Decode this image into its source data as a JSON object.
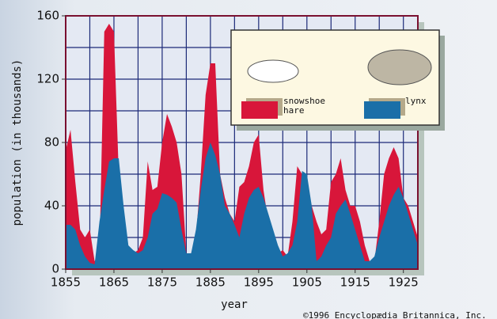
{
  "chart_data": {
    "type": "area",
    "xlabel": "year",
    "ylabel": "population (in thousands)",
    "credit": "©1996 Encyclopædia Britannica, Inc.",
    "x": [
      1855,
      1856,
      1857,
      1858,
      1859,
      1860,
      1861,
      1862,
      1863,
      1864,
      1865,
      1866,
      1867,
      1868,
      1869,
      1870,
      1871,
      1872,
      1873,
      1874,
      1875,
      1876,
      1877,
      1878,
      1879,
      1880,
      1881,
      1882,
      1883,
      1884,
      1885,
      1886,
      1887,
      1888,
      1889,
      1890,
      1891,
      1892,
      1893,
      1894,
      1895,
      1896,
      1897,
      1898,
      1899,
      1900,
      1901,
      1902,
      1903,
      1904,
      1905,
      1906,
      1907,
      1908,
      1909,
      1910,
      1911,
      1912,
      1913,
      1914,
      1915,
      1916,
      1917,
      1918,
      1919,
      1920,
      1921,
      1922,
      1923,
      1924,
      1925,
      1926,
      1927,
      1928
    ],
    "series": [
      {
        "name": "snowshoe hare",
        "color": "#d8163a",
        "values": [
          75,
          88,
          55,
          25,
          20,
          25,
          5,
          10,
          150,
          155,
          150,
          60,
          30,
          12,
          10,
          12,
          20,
          68,
          50,
          52,
          80,
          98,
          90,
          80,
          60,
          10,
          10,
          20,
          60,
          110,
          130,
          130,
          60,
          45,
          35,
          30,
          52,
          55,
          65,
          80,
          85,
          50,
          30,
          20,
          10,
          12,
          8,
          30,
          65,
          60,
          55,
          40,
          30,
          22,
          25,
          55,
          60,
          70,
          50,
          40,
          40,
          30,
          15,
          5,
          5,
          30,
          60,
          70,
          77,
          70,
          45,
          40,
          30,
          20
        ]
      },
      {
        "name": "lynx",
        "color": "#1a6fa8",
        "values": [
          28,
          28,
          25,
          15,
          8,
          4,
          3,
          30,
          50,
          68,
          70,
          70,
          40,
          15,
          12,
          10,
          12,
          20,
          35,
          38,
          48,
          47,
          45,
          42,
          25,
          10,
          10,
          25,
          50,
          70,
          80,
          72,
          60,
          40,
          35,
          28,
          20,
          35,
          45,
          50,
          52,
          45,
          35,
          25,
          15,
          8,
          10,
          15,
          30,
          62,
          60,
          40,
          5,
          8,
          15,
          20,
          35,
          40,
          44,
          35,
          25,
          15,
          5,
          5,
          8,
          20,
          30,
          40,
          47,
          52,
          45,
          35,
          25,
          15
        ]
      }
    ],
    "xlim": [
      1855,
      1928
    ],
    "ylim": [
      0,
      160
    ],
    "xticks": [
      1855,
      1865,
      1875,
      1885,
      1895,
      1905,
      1915,
      1925
    ],
    "yticks": [
      0,
      40,
      80,
      120,
      160
    ],
    "xgrid": [
      1860,
      1865,
      1870,
      1875,
      1880,
      1885,
      1890,
      1895,
      1900,
      1905,
      1910,
      1915,
      1920,
      1925
    ],
    "ygrid": [
      20,
      40,
      60,
      80,
      100,
      120,
      140
    ],
    "grid": true
  }
}
